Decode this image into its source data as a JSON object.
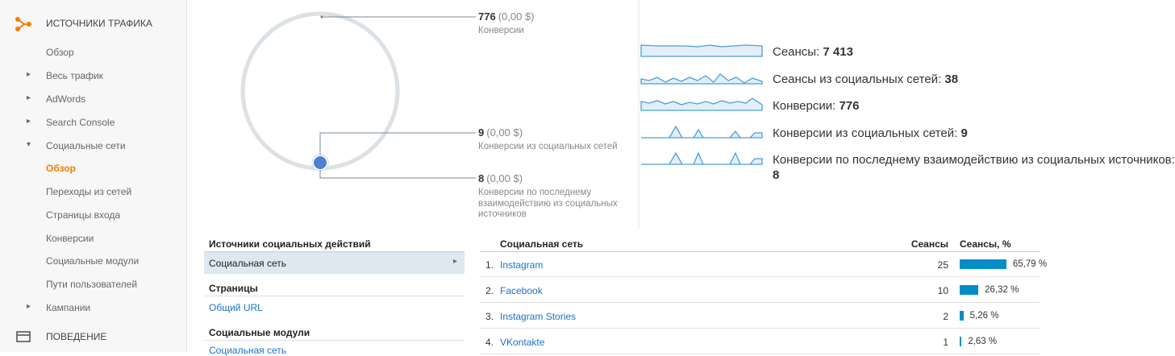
{
  "sidebar": {
    "heading": "ИСТОЧНИКИ ТРАФИКА",
    "items": [
      "Обзор",
      "Весь трафик",
      "AdWords",
      "Search Console",
      "Социальные сети",
      "Обзор",
      "Переходы из сетей",
      "Страницы входа",
      "Конверсии",
      "Социальные модули",
      "Пути пользователей",
      "Кампании"
    ],
    "footer": "ПОВЕДЕНИЕ"
  },
  "funnel": {
    "total": {
      "value": "776",
      "extra": "(0,00 $)",
      "caption": "Конверсии"
    },
    "social": {
      "value": "9",
      "extra": "(0,00 $)",
      "caption": "Конверсии из социальных сетей"
    },
    "last": {
      "value": "8",
      "extra": "(0,00 $)",
      "caption": [
        "Конверсии по последнему",
        "взаимодействию из социальных",
        "источников"
      ]
    }
  },
  "metrics": [
    {
      "label": "Сеансы:",
      "value": "7 413"
    },
    {
      "label": "Сеансы из социальных сетей:",
      "value": "38"
    },
    {
      "label": "Конверсии:",
      "value": "776"
    },
    {
      "label": "Конверсии из социальных сетей:",
      "value": "9"
    },
    {
      "label": "Конверсии по последнему взаимодействию из социальных источников:",
      "value": "8"
    }
  ],
  "sources_panel": {
    "title": "Источники социальных действий",
    "selected": "Социальная сеть",
    "groups": [
      {
        "title": "Страницы",
        "links": [
          "Общий URL"
        ]
      },
      {
        "title": "Социальные модули",
        "links": [
          "Социальная сеть"
        ]
      }
    ]
  },
  "table": {
    "columns": [
      "Социальная сеть",
      "Сеансы",
      "Сеансы, %"
    ],
    "rows": [
      {
        "rank": "1.",
        "name": "Instagram",
        "sessions": 25,
        "share": {
          "value": 65.79,
          "label": "65,79 %"
        }
      },
      {
        "rank": "2.",
        "name": "Facebook",
        "sessions": 10,
        "share": {
          "value": 26.32,
          "label": "26,32 %"
        }
      },
      {
        "rank": "3.",
        "name": "Instagram Stories",
        "sessions": 2,
        "share": {
          "value": 5.26,
          "label": "5,26 %"
        }
      },
      {
        "rank": "4.",
        "name": "VKontakte",
        "sessions": 1,
        "share": {
          "value": 2.63,
          "label": "2,63 %"
        }
      }
    ]
  }
}
